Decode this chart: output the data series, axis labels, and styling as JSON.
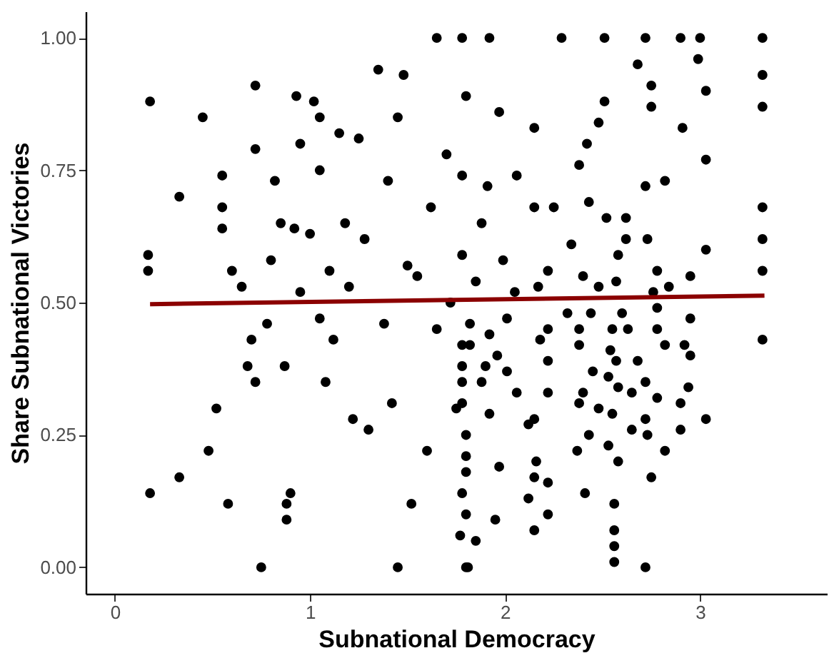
{
  "chart_data": {
    "type": "scatter",
    "xlabel": "Subnational Democracy",
    "ylabel": "Share Subnational Victories",
    "xlim": [
      -0.15,
      3.65
    ],
    "ylim": [
      -0.05,
      1.05
    ],
    "xticks": [
      {
        "value": 0,
        "label": "0"
      },
      {
        "value": 1,
        "label": "1"
      },
      {
        "value": 2,
        "label": "2"
      },
      {
        "value": 3,
        "label": "3"
      }
    ],
    "yticks": [
      {
        "value": 0,
        "label": "0.00"
      },
      {
        "value": 0.25,
        "label": "0.25"
      },
      {
        "value": 0.5,
        "label": "0.50"
      },
      {
        "value": 0.75,
        "label": "0.75"
      },
      {
        "value": 1,
        "label": "1.00"
      }
    ],
    "grid": false,
    "series": [
      {
        "marker": "circle",
        "color": "#000000",
        "x": [
          0.18,
          0.17,
          0.17,
          0.18,
          0.33,
          0.33,
          0.45,
          0.48,
          0.52,
          0.55,
          0.55,
          0.55,
          0.58,
          0.6,
          0.65,
          0.68,
          0.7,
          0.72,
          0.72,
          0.72,
          0.75,
          0.78,
          0.8,
          0.82,
          0.85,
          0.87,
          0.88,
          0.88,
          0.9,
          0.92,
          0.93,
          0.95,
          0.95,
          1.0,
          1.02,
          1.05,
          1.05,
          1.05,
          1.08,
          1.1,
          1.12,
          1.15,
          1.18,
          1.2,
          1.22,
          1.25,
          1.28,
          1.3,
          1.35,
          1.38,
          1.4,
          1.42,
          1.45,
          1.45,
          1.48,
          1.5,
          1.52,
          1.55,
          1.6,
          1.62,
          1.65,
          1.65,
          1.7,
          1.72,
          1.75,
          1.78,
          1.8,
          1.8,
          1.82,
          1.85,
          1.88,
          1.9,
          1.92,
          2.29,
          2.51,
          2.72,
          2.9,
          3.0,
          3.32,
          3.32,
          3.32,
          3.32,
          3.32,
          3.32,
          3.32,
          2.68,
          2.75,
          2.99,
          3.03,
          1.97,
          2.15,
          2.48,
          2.51,
          2.75,
          2.91,
          3.03,
          2.42,
          2.38,
          2.82,
          2.72,
          1.78,
          1.91,
          2.06,
          2.15,
          2.25,
          2.43,
          2.52,
          2.62,
          2.34,
          2.62,
          2.73,
          3.03,
          2.58,
          1.78,
          1.99,
          2.22,
          2.4,
          2.78,
          2.95,
          1.85,
          2.05,
          2.17,
          2.48,
          2.57,
          2.84,
          2.76,
          2.32,
          2.6,
          2.78,
          1.82,
          2.01,
          2.44,
          2.95,
          1.92,
          2.22,
          2.38,
          2.55,
          2.63,
          2.78,
          2.18,
          1.78,
          2.38,
          2.82,
          2.92,
          2.54,
          2.57,
          1.96,
          2.22,
          2.68,
          2.95,
          1.78,
          2.01,
          2.45,
          1.78,
          1.88,
          2.53,
          2.72,
          2.94,
          2.06,
          2.22,
          2.4,
          2.58,
          2.65,
          1.78,
          2.38,
          2.48,
          2.78,
          2.9,
          1.92,
          2.55,
          2.72,
          3.03,
          2.12,
          2.15,
          2.65,
          2.9,
          2.43,
          2.73,
          1.8,
          2.53,
          1.8,
          2.37,
          2.82,
          2.58,
          2.16,
          1.8,
          1.97,
          2.75,
          2.15,
          2.22,
          2.41,
          1.78,
          2.12,
          2.56,
          1.8,
          2.22,
          1.95,
          2.15,
          2.56,
          1.77,
          2.56,
          2.56,
          2.72,
          1.81
        ],
        "values": [
          0.88,
          0.59,
          0.56,
          0.14,
          0.7,
          0.17,
          0.85,
          0.22,
          0.3,
          0.74,
          0.68,
          0.64,
          0.12,
          0.56,
          0.53,
          0.38,
          0.43,
          0.79,
          0.91,
          0.35,
          0.0,
          0.46,
          0.58,
          0.73,
          0.65,
          0.38,
          0.12,
          0.09,
          0.14,
          0.64,
          0.89,
          0.8,
          0.52,
          0.63,
          0.88,
          0.47,
          0.85,
          0.75,
          0.35,
          0.56,
          0.43,
          0.82,
          0.65,
          0.53,
          0.28,
          0.81,
          0.62,
          0.26,
          0.94,
          0.46,
          0.73,
          0.31,
          0.85,
          0.0,
          0.93,
          0.57,
          0.12,
          0.55,
          0.22,
          0.68,
          1.0,
          0.45,
          0.78,
          0.5,
          0.3,
          1.0,
          0.89,
          0.0,
          0.42,
          0.05,
          0.65,
          0.38,
          1.0,
          1.0,
          1.0,
          1.0,
          1.0,
          1.0,
          1.0,
          0.93,
          0.87,
          0.68,
          0.62,
          0.56,
          0.43,
          0.95,
          0.91,
          0.96,
          0.9,
          0.86,
          0.83,
          0.84,
          0.88,
          0.87,
          0.83,
          0.77,
          0.8,
          0.76,
          0.73,
          0.72,
          0.74,
          0.72,
          0.74,
          0.68,
          0.68,
          0.69,
          0.66,
          0.66,
          0.61,
          0.62,
          0.62,
          0.6,
          0.59,
          0.59,
          0.58,
          0.56,
          0.55,
          0.56,
          0.55,
          0.54,
          0.52,
          0.53,
          0.53,
          0.54,
          0.53,
          0.52,
          0.48,
          0.48,
          0.49,
          0.46,
          0.47,
          0.48,
          0.47,
          0.44,
          0.45,
          0.45,
          0.45,
          0.45,
          0.45,
          0.43,
          0.42,
          0.42,
          0.42,
          0.42,
          0.41,
          0.39,
          0.4,
          0.39,
          0.39,
          0.4,
          0.38,
          0.37,
          0.37,
          0.35,
          0.35,
          0.36,
          0.35,
          0.34,
          0.33,
          0.33,
          0.33,
          0.34,
          0.33,
          0.31,
          0.31,
          0.3,
          0.32,
          0.31,
          0.29,
          0.29,
          0.28,
          0.28,
          0.27,
          0.28,
          0.26,
          0.26,
          0.25,
          0.25,
          0.25,
          0.23,
          0.21,
          0.22,
          0.22,
          0.2,
          0.2,
          0.18,
          0.19,
          0.17,
          0.17,
          0.16,
          0.14,
          0.14,
          0.13,
          0.12,
          0.1,
          0.1,
          0.09,
          0.07,
          0.07,
          0.06,
          0.04,
          0.01,
          0.0,
          0.0
        ]
      },
      {
        "type": "line",
        "color": "#8b0000",
        "x": [
          0.18,
          3.33
        ],
        "values": [
          0.497,
          0.513
        ]
      }
    ]
  }
}
